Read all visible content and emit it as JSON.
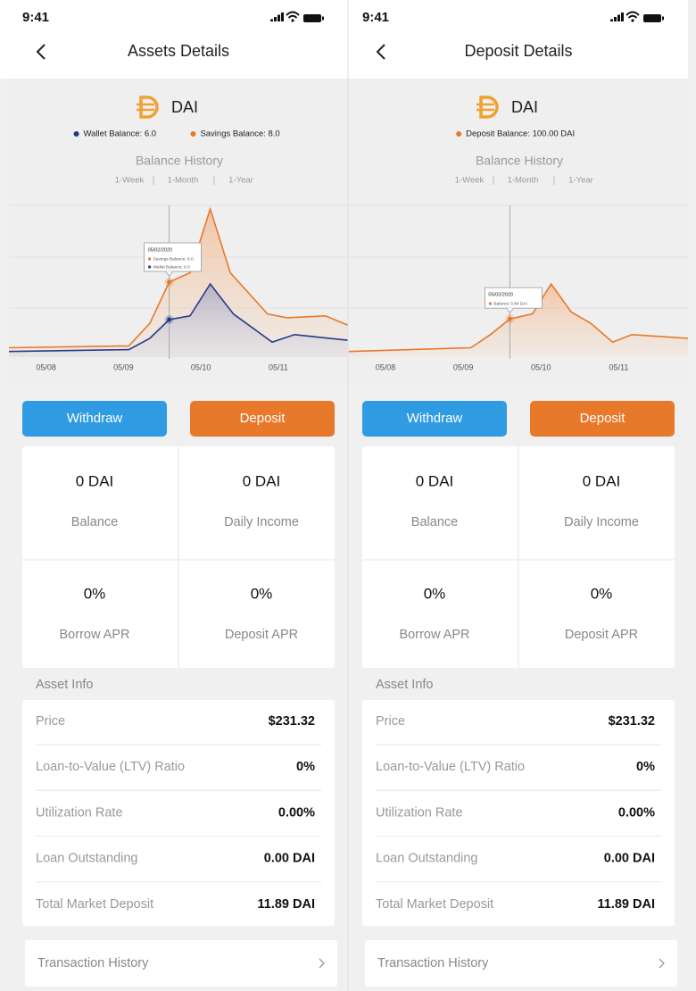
{
  "screens": [
    {
      "status_time": "9:41",
      "title": "Assets Details",
      "token": "DAI",
      "chart": {
        "type": "line",
        "title": "Balance History",
        "ranges": [
          "1-Week",
          "1-Month",
          "1-Year"
        ],
        "xlim": [
          -0.48,
          3.9
        ],
        "ylim": [
          4,
          12
        ],
        "xticks": [
          {
            "value": 0,
            "label": "05/08"
          },
          {
            "value": 1,
            "label": "05/09"
          },
          {
            "value": 2,
            "label": "05/10"
          },
          {
            "value": 3,
            "label": "05/11"
          }
        ],
        "series": [
          {
            "name": "Wallet Balance: 6.0",
            "color": "#233a86",
            "x": [
              -0.48,
              1.07,
              1.34,
              1.59,
              1.86,
              2.12,
              2.42,
              2.92,
              3.21,
              3.9
            ],
            "values": [
              4.3,
              4.4,
              5.0,
              6.0,
              6.2,
              7.9,
              6.3,
              4.8,
              5.2,
              4.9
            ]
          },
          {
            "name": "Savings Balance: 8.0",
            "color": "#e8792b",
            "x": [
              -0.48,
              1.07,
              1.34,
              1.59,
              1.86,
              2.12,
              2.38,
              2.86,
              3.11,
              3.61,
              3.9
            ],
            "values": [
              4.5,
              4.6,
              5.8,
              8.0,
              8.5,
              11.9,
              8.5,
              6.3,
              6.1,
              6.2,
              5.7
            ]
          }
        ],
        "tooltip": {
          "date": "05/02/2020",
          "lines": [
            "Savings Balance: 8.0",
            "Wallet Balance: 6.0"
          ]
        }
      },
      "buttons": [
        "Withdraw",
        "Deposit"
      ],
      "stats": [
        {
          "value": "0 DAI",
          "label": "Balance"
        },
        {
          "value": "0 DAI",
          "label": "Daily Income"
        },
        {
          "value": "0%",
          "label": "Borrow APR"
        },
        {
          "value": "0%",
          "label": "Deposit APR"
        }
      ],
      "section": "Asset Info",
      "info": [
        {
          "label": "Price",
          "value": "$231.32"
        },
        {
          "label": "Loan-to-Value (LTV) Ratio",
          "value": "0%"
        },
        {
          "label": "Utilization Rate",
          "value": "0.00%"
        },
        {
          "label": "Loan Outstanding",
          "value": "0.00 DAI"
        },
        {
          "label": "Total Market Deposit",
          "value": "11.89 DAI"
        }
      ],
      "link": "Transaction History"
    },
    {
      "status_time": "9:41",
      "title": "Deposit Details",
      "token": "DAI",
      "chart": {
        "type": "line",
        "title": "Balance History",
        "ranges": [
          "1-Week",
          "1-Month",
          "1-Year"
        ],
        "xlim": [
          -0.47,
          3.89
        ],
        "ylim": [
          1.8,
          9.8
        ],
        "xticks": [
          {
            "value": 0,
            "label": "05/08"
          },
          {
            "value": 1,
            "label": "05/09"
          },
          {
            "value": 2,
            "label": "05/10"
          },
          {
            "value": 3,
            "label": "05/11"
          }
        ],
        "series": [
          {
            "name": "Deposit Balance: 100.00 DAI",
            "color": "#e8792b",
            "x": [
              -0.47,
              1.1,
              1.35,
              1.6,
              1.89,
              2.13,
              2.39,
              2.64,
              2.92,
              3.17,
              3.89
            ],
            "values": [
              2.1,
              2.3,
              3.0,
              3.84,
              4.1,
              5.7,
              4.2,
              3.6,
              2.6,
              3.0,
              2.8
            ]
          }
        ],
        "tooltip": {
          "date": "05/02/2020",
          "lines": [
            "Balance 3.84 DAI"
          ]
        }
      },
      "buttons": [
        "Withdraw",
        "Deposit"
      ],
      "stats": [
        {
          "value": "0 DAI",
          "label": "Balance"
        },
        {
          "value": "0 DAI",
          "label": "Daily Income"
        },
        {
          "value": "0%",
          "label": "Borrow APR"
        },
        {
          "value": "0%",
          "label": "Deposit APR"
        }
      ],
      "section": "Asset Info",
      "info": [
        {
          "label": "Price",
          "value": "$231.32"
        },
        {
          "label": "Loan-to-Value (LTV) Ratio",
          "value": "0%"
        },
        {
          "label": "Utilization Rate",
          "value": "0.00%"
        },
        {
          "label": "Loan Outstanding",
          "value": "0.00 DAI"
        },
        {
          "label": "Total Market Deposit",
          "value": "11.89 DAI"
        }
      ],
      "link": "Transaction History"
    }
  ]
}
